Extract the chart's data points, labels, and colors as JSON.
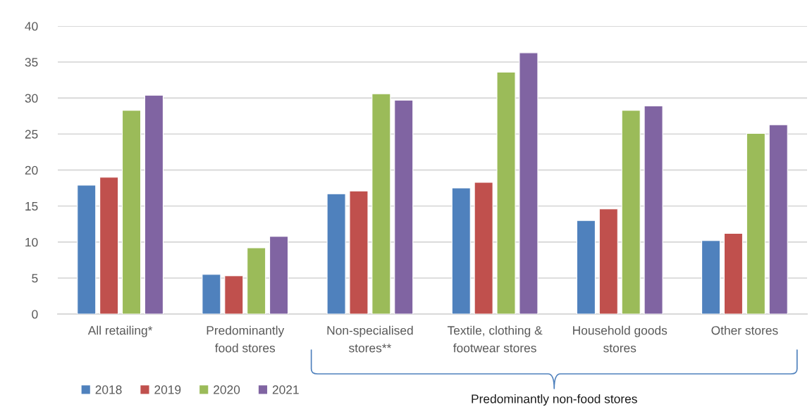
{
  "chart_data": {
    "type": "bar",
    "categories": [
      "All retailing*",
      "Predominantly\nfood stores",
      "Non-specialised\nstores**",
      "Textile, clothing &\nfootwear stores",
      "Household goods\nstores",
      "Other stores"
    ],
    "series": [
      {
        "name": "2018",
        "color": "#4f81bd",
        "values": [
          17.9,
          5.5,
          16.7,
          17.5,
          13.0,
          10.2
        ]
      },
      {
        "name": "2019",
        "color": "#c0504d",
        "values": [
          19.0,
          5.3,
          17.1,
          18.3,
          14.6,
          11.2
        ]
      },
      {
        "name": "2020",
        "color": "#9bbb59",
        "values": [
          28.3,
          9.2,
          30.6,
          33.6,
          28.3,
          25.1
        ]
      },
      {
        "name": "2021",
        "color": "#8064a2",
        "values": [
          30.4,
          10.8,
          29.7,
          36.3,
          28.9,
          26.3
        ]
      }
    ],
    "ylim": [
      0,
      40
    ],
    "yticks": [
      0,
      5,
      10,
      15,
      20,
      25,
      30,
      35,
      40
    ],
    "grid": "y",
    "legend": "bottom left",
    "annotations": [
      "Predominantly non-food stores"
    ]
  }
}
